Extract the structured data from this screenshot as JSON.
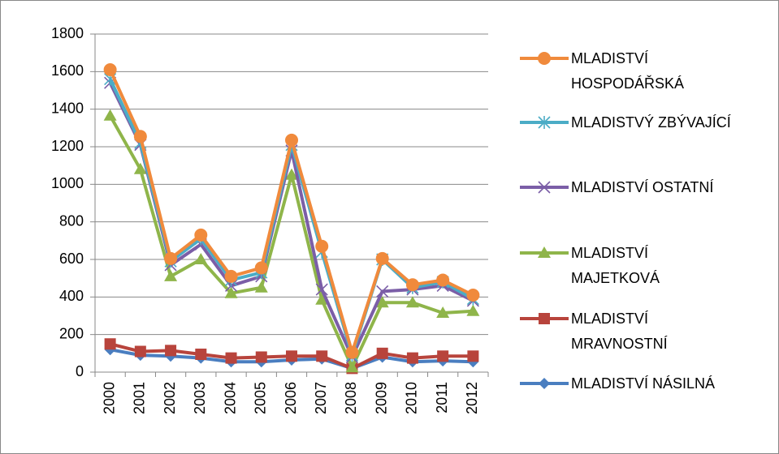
{
  "chart_data": {
    "type": "line",
    "categories": [
      "2000",
      "2001",
      "2002",
      "2003",
      "2004",
      "2005",
      "2006",
      "2007",
      "2008",
      "2009",
      "2010",
      "2011",
      "2012"
    ],
    "series": [
      {
        "name": "MLADISTVÍ HOSPODÁŘSKÁ",
        "color": "#f08a3c",
        "marker": "circle",
        "values": [
          1610,
          1255,
          605,
          730,
          510,
          555,
          1235,
          670,
          105,
          605,
          465,
          490,
          410
        ]
      },
      {
        "name": "MLADISTVÝ ZBÝVAJÍCÍ",
        "color": "#4bacc6",
        "marker": "star",
        "values": [
          1560,
          1220,
          590,
          710,
          490,
          530,
          1210,
          640,
          90,
          600,
          450,
          480,
          390
        ]
      },
      {
        "name": "MLADISTVÍ OSTATNÍ",
        "color": "#7b5ea7",
        "marker": "x",
        "values": [
          1540,
          1210,
          570,
          680,
          460,
          510,
          1180,
          440,
          80,
          430,
          440,
          460,
          380
        ]
      },
      {
        "name": "MLADISTVÍ MAJETKOVÁ",
        "color": "#8fb54a",
        "marker": "triangle",
        "values": [
          1365,
          1080,
          510,
          600,
          420,
          450,
          1050,
          385,
          25,
          370,
          370,
          315,
          325
        ]
      },
      {
        "name": "MLADISTVÍ MRAVNOSTNÍ",
        "color": "#b8443c",
        "marker": "square",
        "values": [
          150,
          110,
          115,
          95,
          75,
          80,
          85,
          85,
          20,
          100,
          75,
          85,
          85
        ]
      },
      {
        "name": "MLADISTVÍ NÁSILNÁ",
        "color": "#4a7ec0",
        "marker": "diamond",
        "values": [
          120,
          90,
          85,
          75,
          55,
          55,
          65,
          70,
          20,
          80,
          55,
          60,
          55
        ]
      }
    ],
    "ylim": [
      0,
      1800
    ],
    "yticks": [
      0,
      200,
      400,
      600,
      800,
      1000,
      1200,
      1400,
      1600,
      1800
    ],
    "grid": true
  }
}
